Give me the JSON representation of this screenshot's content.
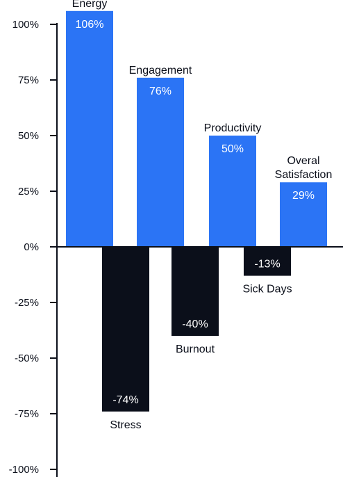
{
  "chart_data": {
    "type": "bar",
    "categories": [
      "Energy",
      "Stress",
      "Engagement",
      "Burnout",
      "Productivity",
      "Sick Days",
      "Overal Satisfaction"
    ],
    "values": [
      106,
      -74,
      76,
      -40,
      50,
      -13,
      29
    ],
    "value_labels": [
      "106%",
      "-74%",
      "76%",
      "-40%",
      "50%",
      "-13%",
      "29%"
    ],
    "category_label_lines": [
      [
        "Energy"
      ],
      [
        "Stress"
      ],
      [
        "Engagement"
      ],
      [
        "Burnout"
      ],
      [
        "Productivity"
      ],
      [
        "Sick Days"
      ],
      [
        "Overal",
        "Satisfaction"
      ]
    ],
    "y_ticks": [
      100,
      75,
      50,
      25,
      0,
      -25,
      -50,
      -75,
      -100
    ],
    "y_tick_labels": [
      "100%",
      "75%",
      "50%",
      "25%",
      "0%",
      "-25%",
      "-50%",
      "-75%",
      "-100%"
    ],
    "ylim": [
      -100,
      100
    ],
    "title": "",
    "xlabel": "",
    "ylabel": "",
    "grid": false,
    "legend": "none",
    "colors": {
      "positive": "#2b74f5",
      "negative": "#0b0f1a",
      "axis": "#0b0f1a"
    }
  }
}
